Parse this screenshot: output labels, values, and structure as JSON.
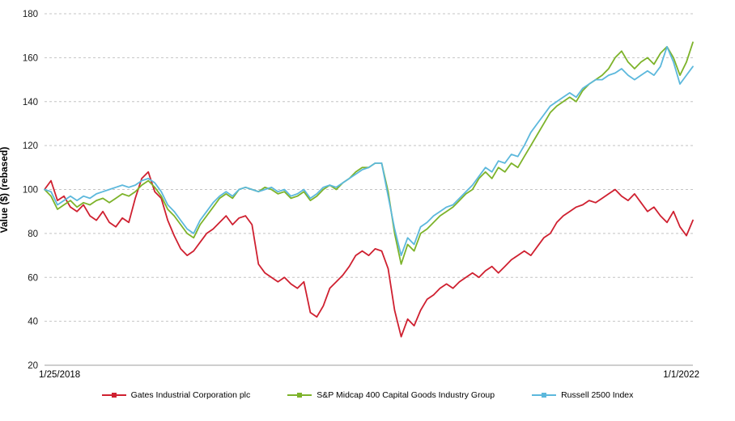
{
  "chart": {
    "x_start_label": "1/25/2018",
    "x_end_label": "1/1/2022"
  },
  "chart_data": {
    "type": "line",
    "title": "",
    "xlabel": "",
    "ylabel": "Value ($) (rebased)",
    "ylim": [
      20,
      180
    ],
    "y_ticks": [
      20,
      40,
      60,
      80,
      100,
      120,
      140,
      160,
      180
    ],
    "x_range": [
      "1/25/2018",
      "1/1/2022"
    ],
    "grid": "horizontal-dashed",
    "legend_position": "bottom",
    "colors": {
      "grid": "#c4c4c4",
      "axis": "#9e9e9e",
      "text": "#1a1a1a"
    },
    "series": [
      {
        "name": "Gates Industrial Corporation plc",
        "color": "#cf2030",
        "values": [
          100,
          104,
          95,
          97,
          92,
          90,
          93,
          88,
          86,
          90,
          85,
          83,
          87,
          85,
          96,
          105,
          108,
          99,
          96,
          86,
          79,
          73,
          70,
          72,
          76,
          80,
          82,
          85,
          88,
          84,
          87,
          88,
          84,
          66,
          62,
          60,
          58,
          60,
          57,
          55,
          58,
          44,
          42,
          47,
          55,
          58,
          61,
          65,
          70,
          72,
          70,
          73,
          72,
          64,
          45,
          33,
          41,
          38,
          45,
          50,
          52,
          55,
          57,
          55,
          58,
          60,
          62,
          60,
          63,
          65,
          62,
          65,
          68,
          70,
          72,
          70,
          74,
          78,
          80,
          85,
          88,
          90,
          92,
          93,
          95,
          94,
          96,
          98,
          100,
          97,
          95,
          98,
          94,
          90,
          92,
          88,
          85,
          90,
          83,
          79,
          86
        ]
      },
      {
        "name": "S&P Midcap 400 Capital Goods Industry Group",
        "color": "#7db32a",
        "values": [
          100,
          97,
          91,
          93,
          95,
          92,
          94,
          93,
          95,
          96,
          94,
          96,
          98,
          97,
          99,
          102,
          104,
          101,
          97,
          91,
          88,
          84,
          80,
          78,
          84,
          88,
          92,
          96,
          98,
          96,
          100,
          101,
          100,
          99,
          101,
          100,
          98,
          99,
          96,
          97,
          99,
          95,
          97,
          100,
          102,
          100,
          103,
          105,
          108,
          110,
          110,
          112,
          112,
          99,
          80,
          66,
          75,
          72,
          80,
          82,
          85,
          88,
          90,
          92,
          95,
          98,
          100,
          105,
          108,
          105,
          110,
          108,
          112,
          110,
          115,
          120,
          125,
          130,
          135,
          138,
          140,
          142,
          140,
          145,
          148,
          150,
          152,
          155,
          160,
          163,
          158,
          155,
          158,
          160,
          157,
          162,
          165,
          160,
          152,
          158,
          167
        ]
      },
      {
        "name": "Russell 2500 Index",
        "color": "#5cb8dc",
        "values": [
          100,
          99,
          93,
          95,
          97,
          95,
          97,
          96,
          98,
          99,
          100,
          101,
          102,
          101,
          102,
          104,
          105,
          103,
          99,
          93,
          90,
          86,
          82,
          80,
          86,
          90,
          94,
          97,
          99,
          97,
          100,
          101,
          100,
          99,
          100,
          101,
          99,
          100,
          97,
          98,
          100,
          96,
          98,
          101,
          102,
          101,
          103,
          105,
          107,
          109,
          110,
          112,
          112,
          97,
          82,
          70,
          78,
          75,
          83,
          85,
          88,
          90,
          92,
          93,
          96,
          99,
          102,
          106,
          110,
          108,
          113,
          112,
          116,
          115,
          120,
          126,
          130,
          134,
          138,
          140,
          142,
          144,
          142,
          146,
          148,
          150,
          150,
          152,
          153,
          155,
          152,
          150,
          152,
          154,
          152,
          156,
          165,
          158,
          148,
          152,
          156
        ]
      }
    ]
  }
}
